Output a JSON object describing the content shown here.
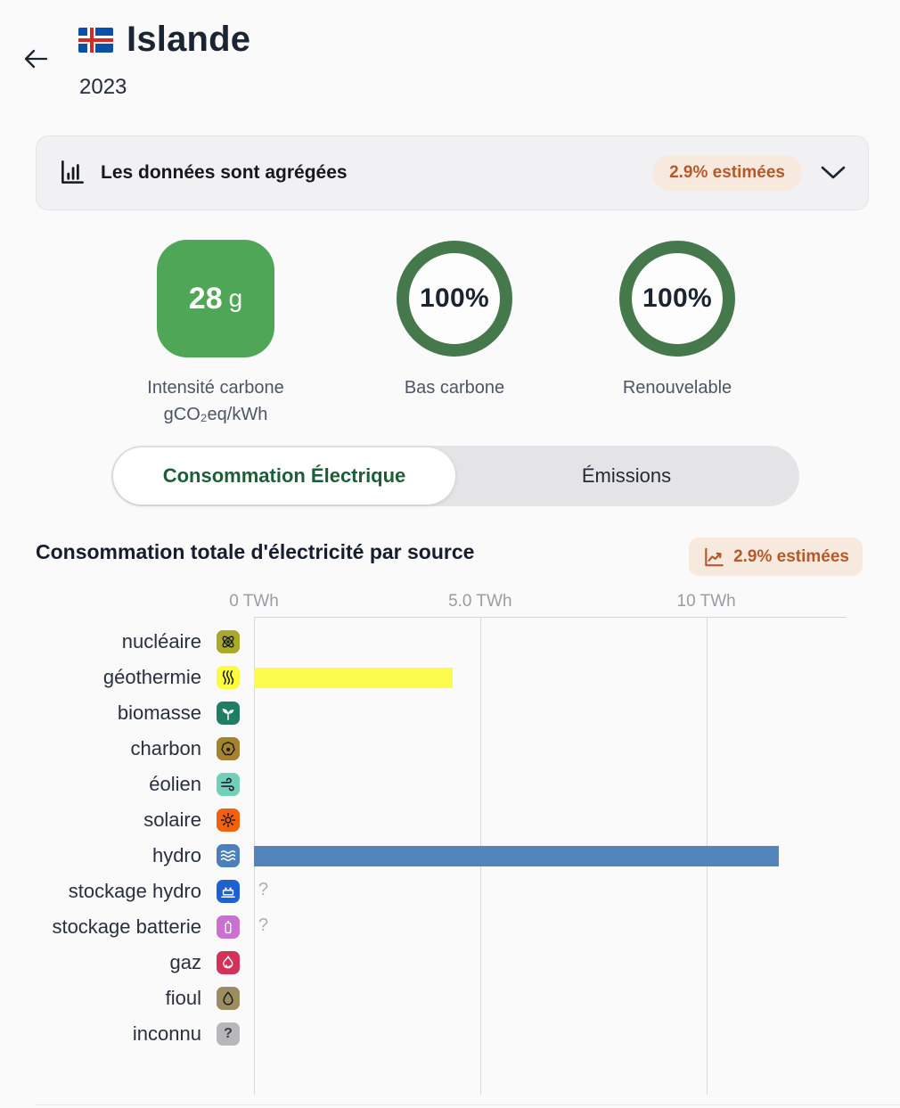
{
  "header": {
    "country": "Islande",
    "year": "2023",
    "flag": "iceland-flag"
  },
  "banner": {
    "icon": "bar-chart-icon",
    "text": "Les données sont agrégées",
    "badge": "2.9% estimées"
  },
  "colors": {
    "estimated_text": "#b5592a",
    "estimated_bg": "#f7e9de"
  },
  "metrics": {
    "carbon_intensity": {
      "value": "28",
      "unit": "g",
      "label1": "Intensité carbone",
      "label2": "gCO₂eq/kWh",
      "box_color": "#4fa656"
    },
    "low_carbon": {
      "value": "100%",
      "label": "Bas carbone",
      "ring_color": "#45784a"
    },
    "renewable": {
      "value": "100%",
      "label": "Renouvelable",
      "ring_color": "#45784a"
    }
  },
  "tabs": {
    "consumption": "Consommation Électrique",
    "emissions": "Émissions",
    "active": "consumption",
    "active_color": "#1c5e35"
  },
  "section": {
    "title": "Consommation totale d'électricité par source",
    "badge": "2.9% estimées"
  },
  "chart_data": {
    "type": "bar",
    "orientation": "horizontal",
    "title": "Consommation totale d'électricité par source",
    "unit": "TWh",
    "xlim": [
      0,
      13.1
    ],
    "grid": true,
    "ticks": [
      {
        "label": "0 TWh",
        "value": 0
      },
      {
        "label": "5.0 TWh",
        "value": 5
      },
      {
        "label": "10 TWh",
        "value": 10
      }
    ],
    "rows": [
      {
        "label": "nucléaire",
        "icon": "atom-icon",
        "icon_bg": "#a9a82b",
        "icon_fg": "#15181e",
        "value": 0
      },
      {
        "label": "géothermie",
        "icon": "heat-waves-icon",
        "icon_bg": "#fdfd3d",
        "icon_fg": "#15181e",
        "value": 4.4,
        "bar_color": "#fbfb4d"
      },
      {
        "label": "biomasse",
        "icon": "sprout-icon",
        "icon_bg": "#207c62",
        "icon_fg": "#ffffff",
        "value": 0
      },
      {
        "label": "charbon",
        "icon": "coal-icon",
        "icon_bg": "#a5832c",
        "icon_fg": "#15181e",
        "value": 0
      },
      {
        "label": "éolien",
        "icon": "wind-icon",
        "icon_bg": "#74cfba",
        "icon_fg": "#15181e",
        "value": 0
      },
      {
        "label": "solaire",
        "icon": "sun-icon",
        "icon_bg": "#f4610d",
        "icon_fg": "#15181e",
        "value": 0
      },
      {
        "label": "hydro",
        "icon": "water-waves-icon",
        "icon_bg": "#4c80ba",
        "icon_fg": "#ffffff",
        "value": 11.6,
        "bar_color": "#5285bc"
      },
      {
        "label": "stockage hydro",
        "icon": "dam-icon",
        "icon_bg": "#1c60d4",
        "icon_fg": "#ffffff",
        "value": null,
        "unknown": "?"
      },
      {
        "label": "stockage batterie",
        "icon": "battery-icon",
        "icon_bg": "#cb70d1",
        "icon_fg": "#ffffff",
        "value": null,
        "unknown": "?"
      },
      {
        "label": "gaz",
        "icon": "flame-icon",
        "icon_bg": "#d23158",
        "icon_fg": "#ffffff",
        "value": 0
      },
      {
        "label": "fioul",
        "icon": "droplet-icon",
        "icon_bg": "#9b8d60",
        "icon_fg": "#15181e",
        "value": 0
      },
      {
        "label": "inconnu",
        "icon": "question-icon",
        "icon_bg": "#b7b7b9",
        "icon_fg": "#3c3c40",
        "value": 0
      }
    ]
  }
}
